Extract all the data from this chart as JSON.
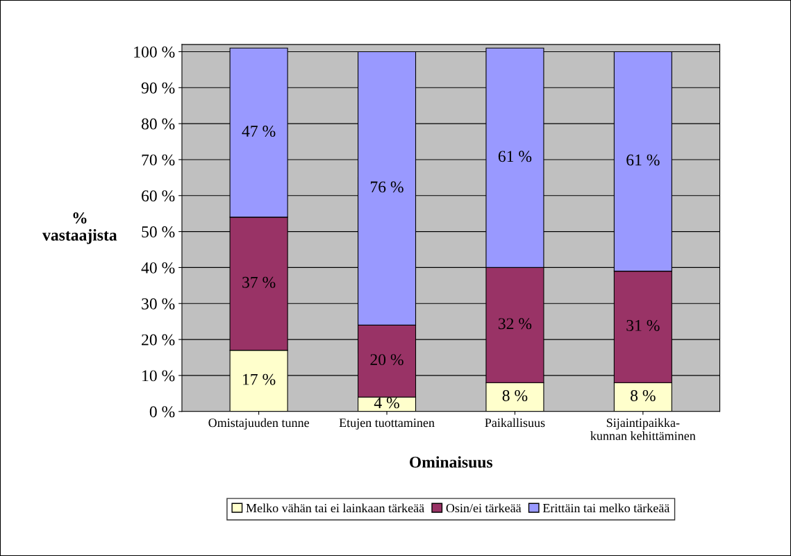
{
  "chart_data": {
    "type": "bar",
    "stacked": true,
    "xlabel": "Ominaisuus",
    "ylabel": "%\nvastaajista",
    "categories": [
      "Omistajuuden tunne",
      "Etujen tuottaminen",
      "Paikallisuus",
      "Sijaintipaikka-\nkunnan kehittäminen"
    ],
    "series": [
      {
        "name": "Melko vähän tai ei lainkaan tärkeää",
        "color": "#ffffcc",
        "values": [
          17,
          4,
          8,
          8
        ],
        "value_labels": [
          "17 %",
          "4 %",
          "8 %",
          "8 %"
        ]
      },
      {
        "name": "Osin/ei tärkeää",
        "color": "#993366",
        "values": [
          37,
          20,
          32,
          31
        ],
        "value_labels": [
          "37 %",
          "20 %",
          "32 %",
          "31 %"
        ]
      },
      {
        "name": "Erittäin tai melko tärkeää",
        "color": "#9999ff",
        "values": [
          47,
          76,
          61,
          61
        ],
        "value_labels": [
          "47 %",
          "76 %",
          "61 %",
          "61 %"
        ]
      }
    ],
    "ylim": [
      0,
      102
    ],
    "yticks": [
      {
        "value": 0,
        "label": "0 %"
      },
      {
        "value": 10,
        "label": "10 %"
      },
      {
        "value": 20,
        "label": "20 %"
      },
      {
        "value": 30,
        "label": "30 %"
      },
      {
        "value": 40,
        "label": "40 %"
      },
      {
        "value": 50,
        "label": "50 %"
      },
      {
        "value": 60,
        "label": "60 %"
      },
      {
        "value": 70,
        "label": "70 %"
      },
      {
        "value": 80,
        "label": "80 %"
      },
      {
        "value": 90,
        "label": "90 %"
      },
      {
        "value": 100,
        "label": "100 %"
      }
    ],
    "grid": "y",
    "legend": "bottom"
  }
}
